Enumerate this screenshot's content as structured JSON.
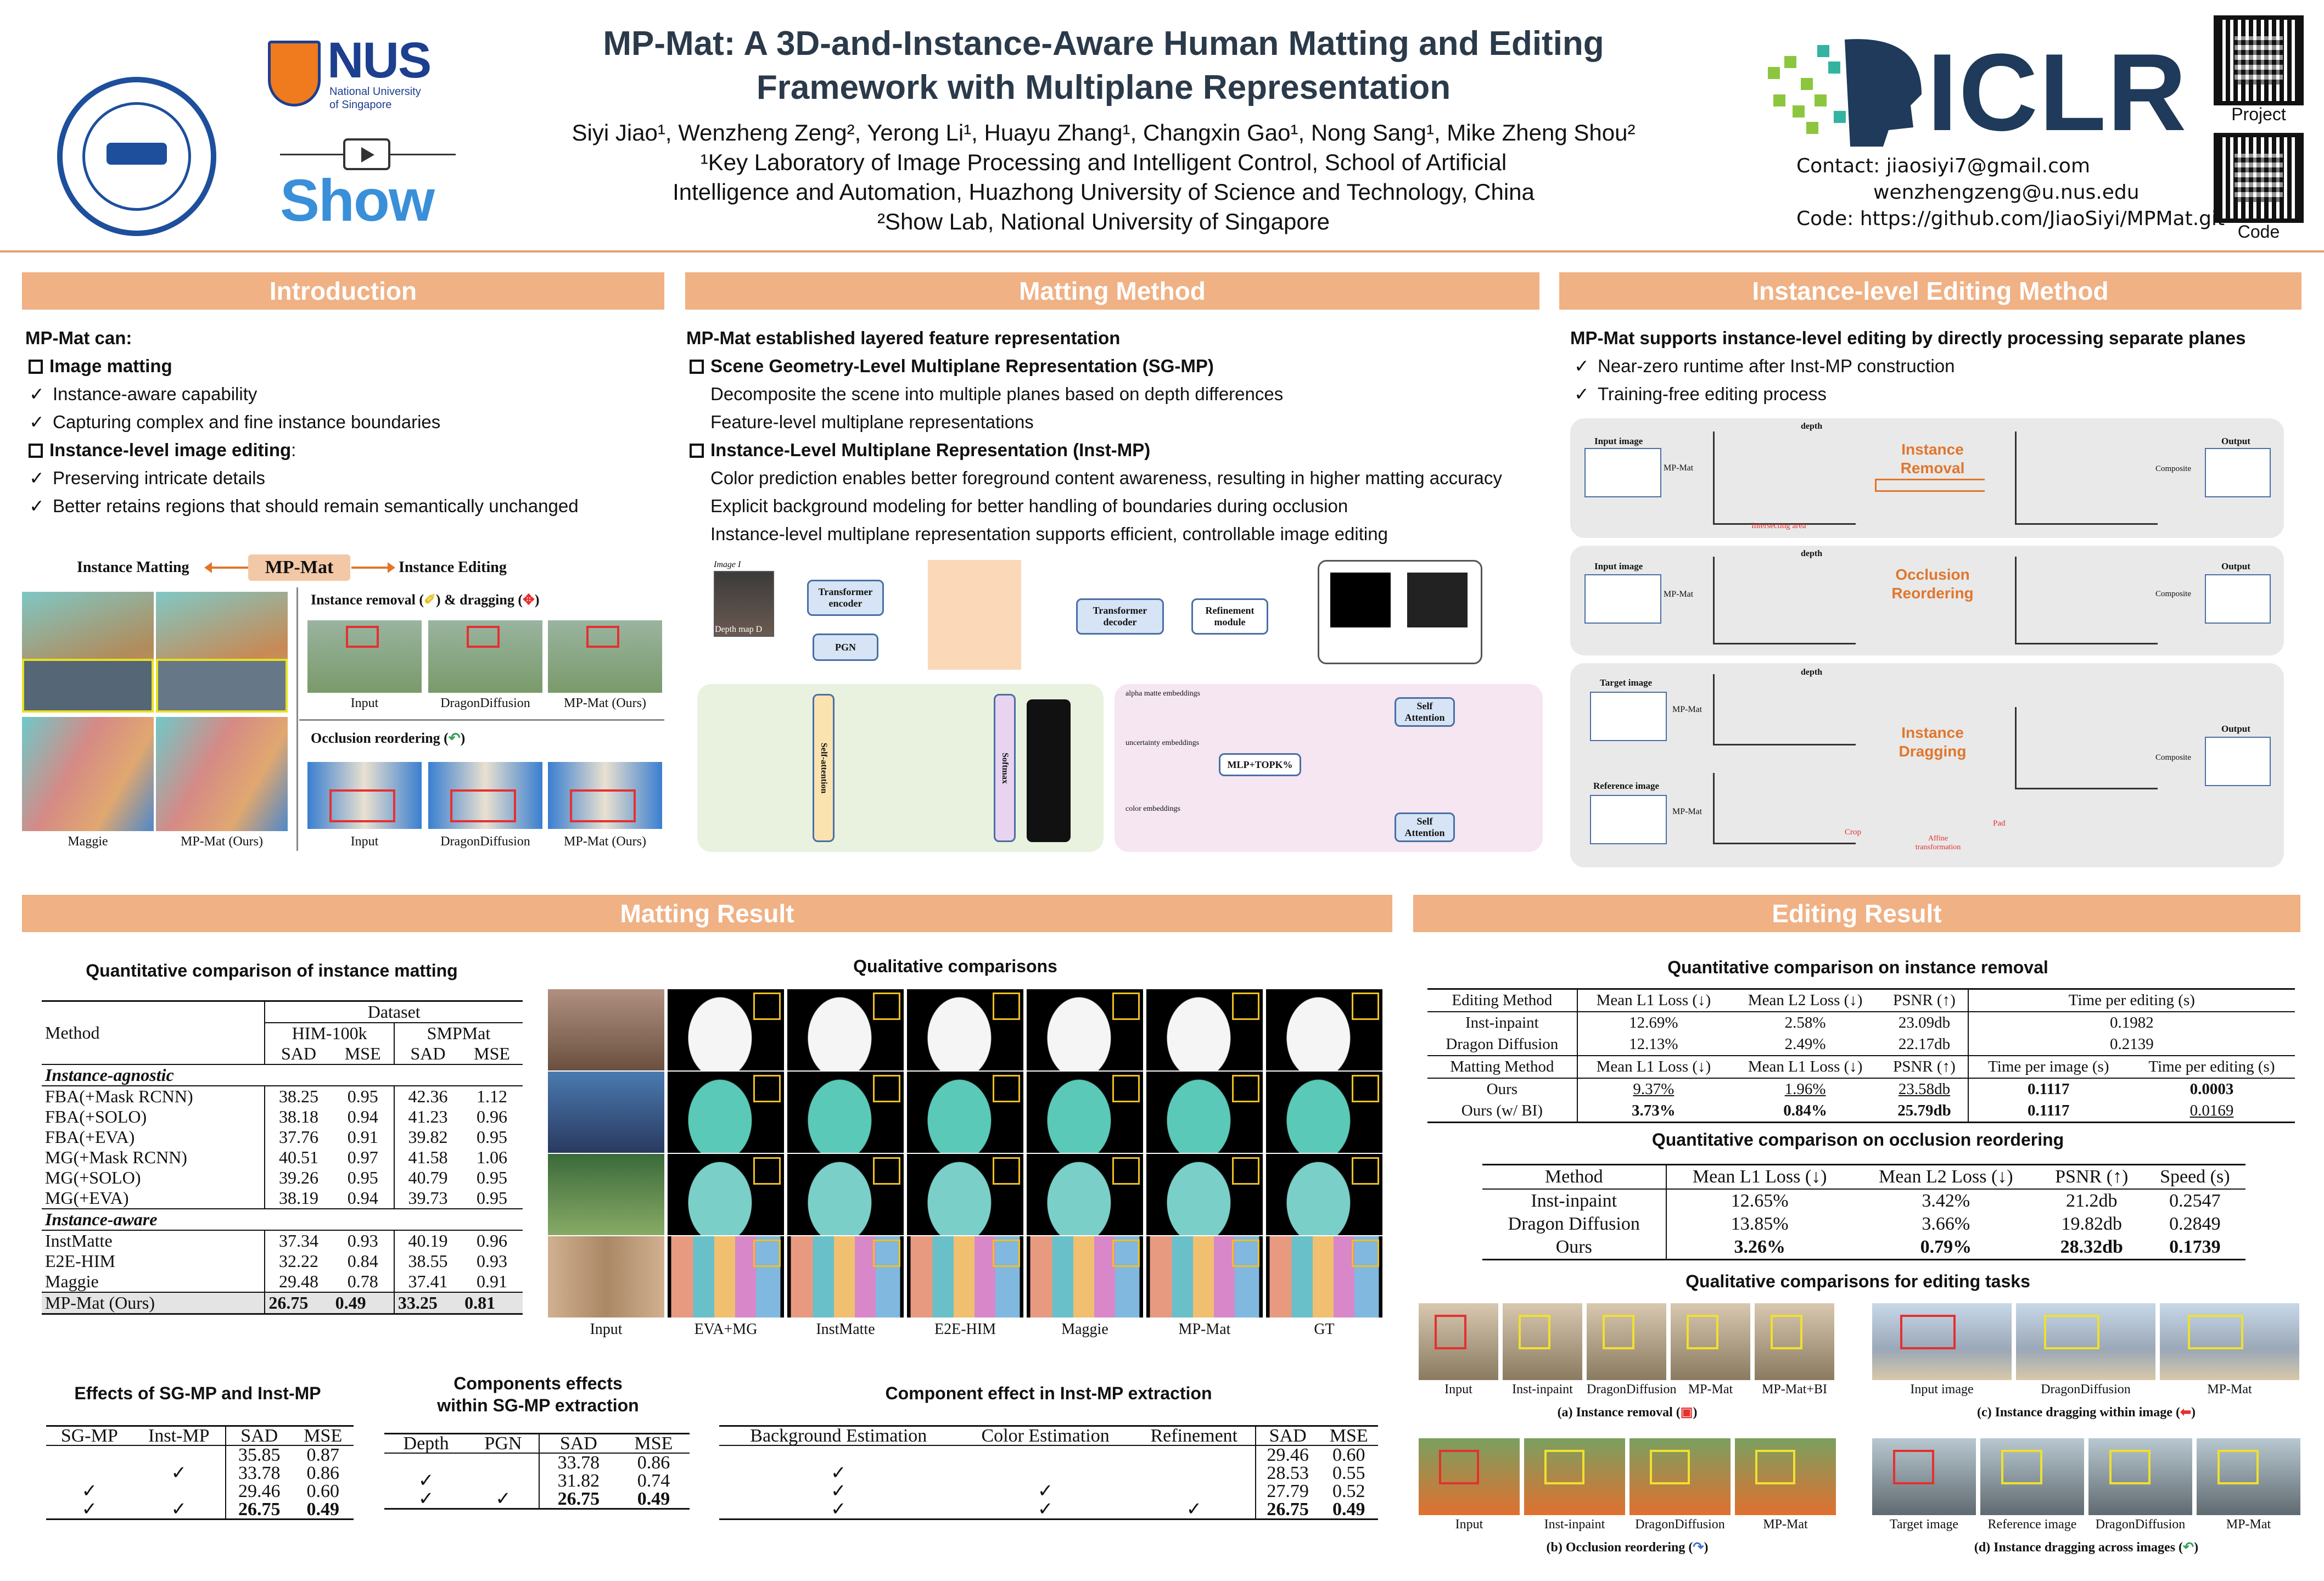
{
  "header": {
    "title_line1": "MP-Mat: A 3D-and-Instance-Aware Human Matting and Editing",
    "title_line2": "Framework with Multiplane Representation",
    "authors": "Siyi Jiao¹, Wenzheng Zeng², Yerong Li¹, Huayu Zhang¹, Changxin Gao¹, Nong Sang¹, Mike Zheng Shou²",
    "affil1": "¹Key Laboratory of Image Processing and Intelligent Control, School of Artificial",
    "affil2": "Intelligence and Automation, Huazhong University of Science and Technology, China",
    "affil3": "²Show Lab, National University of Singapore",
    "nus": "NUS",
    "nus_sub1": "National University",
    "nus_sub2": "of Singapore",
    "show": "Show",
    "iclr": "ICLR",
    "contact1": "Contact: jiaosiyi7@gmail.com",
    "contact2": "wenzhengzeng@u.nus.edu",
    "contact3": "Code: https://github.com/JiaoSiyi/MPMat.git",
    "qr_project": "Project",
    "qr_code": "Code"
  },
  "sections": {
    "intro": "Introduction",
    "matting_method": "Matting Method",
    "editing_method": "Instance-level Editing Method",
    "matting_result": "Matting Result",
    "editing_result": "Editing Result"
  },
  "intro": {
    "lead": "MP-Mat can:",
    "l1": "Image matting",
    "l2": "Instance-aware capability",
    "l3": "Capturing complex and fine instance boundaries",
    "l4": "Instance-level image editing",
    "l4b": ":",
    "l5": "Preserving intricate details",
    "l6": "Better retains regions that should remain semantically unchanged",
    "fig_left": "Instance Matting",
    "fig_mid": "MP-Mat",
    "fig_right": "Instance Editing",
    "removal": "Instance removal (",
    "removal2": ") & dragging (",
    "removal3": ")",
    "occlusion": "Occlusion reordering (",
    "occlusion2": ")",
    "cap_maggie": "Maggie",
    "cap_mpmat": "MP-Mat (Ours)",
    "cap_input": "Input",
    "cap_dragon": "DragonDiffusion",
    "cap_mpmat2": "MP-Mat (Ours)",
    "cap_input2": "Input",
    "cap_dragon2": "DragonDiffusion",
    "cap_mpmat3": "MP-Mat (Ours)"
  },
  "method": {
    "lead": "MP-Mat established layered feature representation",
    "h1": "Scene Geometry-Level Multiplane Representation (SG-MP)",
    "t1": "Decomposite the scene into multiple planes based on depth differences",
    "t2": "Feature-level multiplane representations",
    "h2": "Instance-Level Multiplane Representation (Inst-MP)",
    "t3": "Color prediction enables better foreground content awareness, resulting in higher matting accuracy",
    "t4": "Explicit background modeling for better handling of boundaries during occlusion",
    "t5": "Instance-level multiplane representation supports efficient, controllable image editing",
    "n_image": "Image I",
    "n_depth": "Depth map D",
    "n_te": "Transformer encoder",
    "n_pgn": "PGN",
    "n_td": "Transformer decoder",
    "n_ref": "Refinement module",
    "n_sa": "Self-attention",
    "n_softmax": "Softmax",
    "n_mlp": "MLP+TOPK%",
    "n_selfatt": "Self Attention",
    "n_selfatt2": "Self Attention",
    "n_alpha": "alpha matte embeddings",
    "n_unc": "uncertainty embeddings",
    "n_color": "color embeddings"
  },
  "editing_method": {
    "lead": "MP-Mat supports instance-level editing by directly processing separate planes",
    "b1": "Near-zero runtime after Inst-MP construction",
    "b2": "Training-free editing process",
    "p1": "Instance Removal",
    "p2": "Occlusion Reordering",
    "p3": "Instance Dragging",
    "input_image": "Input image",
    "mpmat": "MP-Mat",
    "composite": "Composite",
    "output": "Output",
    "depth": "depth",
    "intersecting": "Intersecting area",
    "target": "Target image",
    "reference": "Reference image",
    "crop": "Crop",
    "affine": "Affine transformation",
    "pad": "Pad"
  },
  "matting_table": {
    "title": "Quantitative comparison of instance matting",
    "h_method": "Method",
    "h_dataset": "Dataset",
    "h_him": "HIM-100k",
    "h_smp": "SMPMat",
    "h_sad": "SAD",
    "h_mse": "MSE",
    "g1": "Instance-agnostic",
    "g2": "Instance-aware",
    "rows1": [
      [
        "FBA(+Mask RCNN)",
        "38.25",
        "0.95",
        "42.36",
        "1.12"
      ],
      [
        "FBA(+SOLO)",
        "38.18",
        "0.94",
        "41.23",
        "0.96"
      ],
      [
        "FBA(+EVA)",
        "37.76",
        "0.91",
        "39.82",
        "0.95"
      ],
      [
        "MG(+Mask RCNN)",
        "40.51",
        "0.97",
        "41.58",
        "1.06"
      ],
      [
        "MG(+SOLO)",
        "39.26",
        "0.95",
        "40.79",
        "0.95"
      ],
      [
        "MG(+EVA)",
        "38.19",
        "0.94",
        "39.73",
        "0.95"
      ]
    ],
    "rows2": [
      [
        "InstMatte",
        "37.34",
        "0.93",
        "40.19",
        "0.96"
      ],
      [
        "E2E-HIM",
        "32.22",
        "0.84",
        "38.55",
        "0.93"
      ],
      [
        "Maggie",
        "29.48",
        "0.78",
        "37.41",
        "0.91"
      ]
    ],
    "ours": [
      "MP-Mat (Ours)",
      "26.75",
      "0.49",
      "33.25",
      "0.81"
    ]
  },
  "qual": {
    "title": "Qualitative comparisons",
    "cols": [
      "Input",
      "EVA+MG",
      "InstMatte",
      "E2E-HIM",
      "Maggie",
      "MP-Mat",
      "GT"
    ]
  },
  "abl1": {
    "title": "Effects of SG-MP and Inst-MP",
    "h": [
      "SG-MP",
      "Inst-MP",
      "SAD",
      "MSE"
    ],
    "rows": [
      [
        "",
        "",
        "35.85",
        "0.87"
      ],
      [
        "",
        "✓",
        "33.78",
        "0.86"
      ],
      [
        "✓",
        "",
        "29.46",
        "0.60"
      ],
      [
        "✓",
        "✓",
        "26.75",
        "0.49"
      ]
    ]
  },
  "abl2": {
    "title1": "Components effects",
    "title2": "within SG-MP extraction",
    "h": [
      "Depth",
      "PGN",
      "SAD",
      "MSE"
    ],
    "rows": [
      [
        "",
        "",
        "33.78",
        "0.86"
      ],
      [
        "✓",
        "",
        "31.82",
        "0.74"
      ],
      [
        "✓",
        "✓",
        "26.75",
        "0.49"
      ]
    ]
  },
  "abl3": {
    "title": "Component effect in Inst-MP extraction",
    "h": [
      "Background Estimation",
      "Color Estimation",
      "Refinement",
      "SAD",
      "MSE"
    ],
    "rows": [
      [
        "",
        "",
        "",
        "29.46",
        "0.60"
      ],
      [
        "✓",
        "",
        "",
        "28.53",
        "0.55"
      ],
      [
        "✓",
        "✓",
        "",
        "27.79",
        "0.52"
      ],
      [
        "✓",
        "✓",
        "✓",
        "26.75",
        "0.49"
      ]
    ]
  },
  "removal_table": {
    "title": "Quantitative comparison on instance removal",
    "h1": [
      "Editing Method",
      "Mean L1 Loss (↓)",
      "Mean L2 Loss (↓)",
      "PSNR (↑)",
      "Time per editing (s)"
    ],
    "r1": [
      "Inst-inpaint",
      "12.69%",
      "2.58%",
      "23.09db",
      "0.1982"
    ],
    "r2": [
      "Dragon Diffusion",
      "12.13%",
      "2.49%",
      "22.17db",
      "0.2139"
    ],
    "h2": [
      "Matting Method",
      "Mean L1 Loss (↓)",
      "Mean L1 Loss (↓)",
      "PSNR (↑)",
      "Time per image (s)",
      "Time per editing (s)"
    ],
    "r3": [
      "Ours",
      "9.37%",
      "1.96%",
      "23.58db",
      "0.1117",
      "0.0003"
    ],
    "r4": [
      "Ours (w/ BI)",
      "3.73%",
      "0.84%",
      "25.79db",
      "0.1117",
      "0.0169"
    ]
  },
  "occl_table": {
    "title": "Quantitative comparison on occlusion reordering",
    "h": [
      "Method",
      "Mean L1 Loss (↓)",
      "Mean L2 Loss (↓)",
      "PSNR (↑)",
      "Speed (s)"
    ],
    "rows": [
      [
        "Inst-inpaint",
        "12.65%",
        "3.42%",
        "21.2db",
        "0.2547"
      ],
      [
        "Dragon Diffusion",
        "13.85%",
        "3.66%",
        "19.82db",
        "0.2849"
      ],
      [
        "Ours",
        "3.26%",
        "0.79%",
        "28.32db",
        "0.1739"
      ]
    ]
  },
  "edit_qual": {
    "title": "Qualitative comparisons for editing tasks",
    "a_cols": [
      "Input",
      "Inst-inpaint",
      "DragonDiffusion",
      "MP-Mat",
      "MP-Mat+BI"
    ],
    "a_cap": "(a) Instance removal (",
    "c_cols": [
      "Input image",
      "DragonDiffusion",
      "MP-Mat"
    ],
    "c_cap": "(c) Instance dragging within image (",
    "b_cols": [
      "Input",
      "Inst-inpaint",
      "DragonDiffusion",
      "MP-Mat"
    ],
    "b_cap": "(b) Occlusion reordering (",
    "d_cols": [
      "Target image",
      "Reference image",
      "DragonDiffusion",
      "MP-Mat"
    ],
    "d_cap": "(d) Instance dragging across images (",
    "cap_close": ")"
  },
  "colors": {
    "accent": "#f0b184",
    "title": "#2b3a4a",
    "orange": "#e0762d",
    "red": "#e53030"
  }
}
